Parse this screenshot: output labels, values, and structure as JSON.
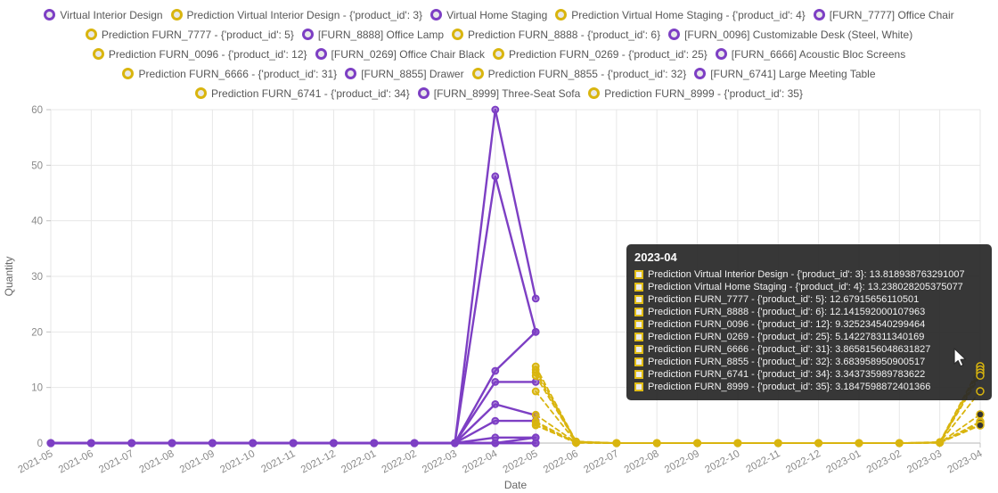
{
  "colors": {
    "actual": "#7d3fc4",
    "prediction": "#d9b50f",
    "legend_fill": "#e9e9e9",
    "grid": "#e7e7e7",
    "axis_line": "#c3c3c3",
    "tick_text": "#8a8a8a",
    "axis_title_text": "#666666",
    "tooltip_bg": "rgba(40,40,40,0.93)",
    "highlight_fill": "#333333"
  },
  "legend": {
    "rows": [
      [
        {
          "label": "Virtual Interior Design",
          "type": "actual"
        },
        {
          "label": "Prediction Virtual Interior Design - {'product_id': 3}",
          "type": "prediction"
        },
        {
          "label": "Virtual Home Staging",
          "type": "actual"
        },
        {
          "label": "Prediction Virtual Home Staging - {'product_id': 4}",
          "type": "prediction"
        },
        {
          "label": "[FURN_7777] Office Chair",
          "type": "actual"
        }
      ],
      [
        {
          "label": "Prediction FURN_7777 - {'product_id': 5}",
          "type": "prediction"
        },
        {
          "label": "[FURN_8888] Office Lamp",
          "type": "actual"
        },
        {
          "label": "Prediction FURN_8888 - {'product_id': 6}",
          "type": "prediction"
        },
        {
          "label": "[FURN_0096] Customizable Desk (Steel, White)",
          "type": "actual"
        }
      ],
      [
        {
          "label": "Prediction FURN_0096 - {'product_id': 12}",
          "type": "prediction"
        },
        {
          "label": "[FURN_0269] Office Chair Black",
          "type": "actual"
        },
        {
          "label": "Prediction FURN_0269 - {'product_id': 25}",
          "type": "prediction"
        },
        {
          "label": "[FURN_6666] Acoustic Bloc Screens",
          "type": "actual"
        }
      ],
      [
        {
          "label": "Prediction FURN_6666 - {'product_id': 31}",
          "type": "prediction"
        },
        {
          "label": "[FURN_8855] Drawer",
          "type": "actual"
        },
        {
          "label": "Prediction FURN_8855 - {'product_id': 32}",
          "type": "prediction"
        },
        {
          "label": "[FURN_6741] Large Meeting Table",
          "type": "actual"
        }
      ],
      [
        {
          "label": "Prediction FURN_6741 - {'product_id': 34}",
          "type": "prediction"
        },
        {
          "label": "[FURN_8999] Three-Seat Sofa",
          "type": "actual"
        },
        {
          "label": "Prediction FURN_8999 - {'product_id': 35}",
          "type": "prediction"
        }
      ]
    ]
  },
  "chart_data": {
    "type": "line",
    "title": "",
    "xlabel": "Date",
    "ylabel": "Quantity",
    "ylim": [
      0,
      60
    ],
    "y_ticks": [
      0,
      10,
      20,
      30,
      40,
      50,
      60
    ],
    "grid": true,
    "legend_position": "top",
    "x": [
      "2021-05",
      "2021-06",
      "2021-07",
      "2021-08",
      "2021-09",
      "2021-10",
      "2021-11",
      "2021-12",
      "2022-01",
      "2022-02",
      "2022-03",
      "2022-04",
      "2022-05",
      "2022-06",
      "2022-07",
      "2022-08",
      "2022-09",
      "2022-10",
      "2022-11",
      "2022-12",
      "2023-01",
      "2023-02",
      "2023-03",
      "2023-04"
    ],
    "series": [
      {
        "name": "Virtual Interior Design",
        "role": "actual",
        "dash": false,
        "values": [
          0,
          0,
          0,
          0,
          0,
          0,
          0,
          0,
          0,
          0,
          0,
          60,
          26,
          null,
          null,
          null,
          null,
          null,
          null,
          null,
          null,
          null,
          null,
          null
        ]
      },
      {
        "name": "Virtual Home Staging",
        "role": "actual",
        "dash": false,
        "values": [
          0,
          0,
          0,
          0,
          0,
          0,
          0,
          0,
          0,
          0,
          0,
          48,
          20,
          null,
          null,
          null,
          null,
          null,
          null,
          null,
          null,
          null,
          null,
          null
        ]
      },
      {
        "name": "[FURN_7777] Office Chair",
        "role": "actual",
        "dash": false,
        "values": [
          0,
          0,
          0,
          0,
          0,
          0,
          0,
          0,
          0,
          0,
          0,
          13,
          20,
          null,
          null,
          null,
          null,
          null,
          null,
          null,
          null,
          null,
          null,
          null
        ]
      },
      {
        "name": "[FURN_8888] Office Lamp",
        "role": "actual",
        "dash": false,
        "values": [
          0,
          0,
          0,
          0,
          0,
          0,
          0,
          0,
          0,
          0,
          0,
          11,
          11,
          null,
          null,
          null,
          null,
          null,
          null,
          null,
          null,
          null,
          null,
          null
        ]
      },
      {
        "name": "[FURN_0096] Customizable Desk (Steel, White)",
        "role": "actual",
        "dash": false,
        "values": [
          0,
          0,
          0,
          0,
          0,
          0,
          0,
          0,
          0,
          0,
          0,
          7,
          5,
          null,
          null,
          null,
          null,
          null,
          null,
          null,
          null,
          null,
          null,
          null
        ]
      },
      {
        "name": "[FURN_0269] Office Chair Black",
        "role": "actual",
        "dash": false,
        "values": [
          0,
          0,
          0,
          0,
          0,
          0,
          0,
          0,
          0,
          0,
          0,
          4,
          4,
          null,
          null,
          null,
          null,
          null,
          null,
          null,
          null,
          null,
          null,
          null
        ]
      },
      {
        "name": "[FURN_6666] Acoustic Bloc Screens",
        "role": "actual",
        "dash": false,
        "values": [
          0,
          0,
          0,
          0,
          0,
          0,
          0,
          0,
          0,
          0,
          0,
          1,
          1,
          null,
          null,
          null,
          null,
          null,
          null,
          null,
          null,
          null,
          null,
          null
        ]
      },
      {
        "name": "[FURN_8855] Drawer",
        "role": "actual",
        "dash": false,
        "values": [
          0,
          0,
          0,
          0,
          0,
          0,
          0,
          0,
          0,
          0,
          0,
          0,
          1,
          null,
          null,
          null,
          null,
          null,
          null,
          null,
          null,
          null,
          null,
          null
        ]
      },
      {
        "name": "[FURN_6741] Large Meeting Table",
        "role": "actual",
        "dash": false,
        "values": [
          0,
          0,
          0,
          0,
          0,
          0,
          0,
          0,
          0,
          0,
          0,
          0,
          0,
          null,
          null,
          null,
          null,
          null,
          null,
          null,
          null,
          null,
          null,
          null
        ]
      },
      {
        "name": "[FURN_8999] Three-Seat Sofa",
        "role": "actual",
        "dash": false,
        "values": [
          0,
          0,
          0,
          0,
          0,
          0,
          0,
          0,
          0,
          0,
          0,
          0,
          0,
          null,
          null,
          null,
          null,
          null,
          null,
          null,
          null,
          null,
          null,
          null
        ]
      },
      {
        "name": "Prediction Virtual Interior Design - {'product_id': 3}",
        "role": "prediction",
        "dash": true,
        "values": [
          null,
          null,
          null,
          null,
          null,
          null,
          null,
          null,
          null,
          null,
          null,
          null,
          13.8,
          0.3,
          0,
          0,
          0,
          0,
          0,
          0,
          0,
          0,
          0.2,
          13.818938763291007
        ]
      },
      {
        "name": "Prediction Virtual Home Staging - {'product_id': 4}",
        "role": "prediction",
        "dash": true,
        "values": [
          null,
          null,
          null,
          null,
          null,
          null,
          null,
          null,
          null,
          null,
          null,
          null,
          13.2,
          0.25,
          0,
          0,
          0,
          0,
          0,
          0,
          0,
          0,
          0.15,
          13.238028205375077
        ]
      },
      {
        "name": "Prediction FURN_7777 - {'product_id': 5}",
        "role": "prediction",
        "dash": true,
        "values": [
          null,
          null,
          null,
          null,
          null,
          null,
          null,
          null,
          null,
          null,
          null,
          null,
          12.7,
          0.2,
          0,
          0,
          0,
          0,
          0,
          0,
          0,
          0,
          0.1,
          12.67915656110501
        ]
      },
      {
        "name": "Prediction FURN_8888 - {'product_id': 6}",
        "role": "prediction",
        "dash": true,
        "values": [
          null,
          null,
          null,
          null,
          null,
          null,
          null,
          null,
          null,
          null,
          null,
          null,
          12.1,
          0.2,
          0,
          0,
          0,
          0,
          0,
          0,
          0,
          0,
          0.1,
          12.141592000107963
        ]
      },
      {
        "name": "Prediction FURN_0096 - {'product_id': 12}",
        "role": "prediction",
        "dash": true,
        "values": [
          null,
          null,
          null,
          null,
          null,
          null,
          null,
          null,
          null,
          null,
          null,
          null,
          9.3,
          0.15,
          0,
          0,
          0,
          0,
          0,
          0,
          0,
          0,
          0.1,
          9.325234540299464
        ]
      },
      {
        "name": "Prediction FURN_0269 - {'product_id': 25}",
        "role": "prediction",
        "dash": true,
        "values": [
          null,
          null,
          null,
          null,
          null,
          null,
          null,
          null,
          null,
          null,
          null,
          null,
          5.1,
          0.1,
          0,
          0,
          0,
          0,
          0,
          0,
          0,
          0,
          0.05,
          5.142278311340169
        ]
      },
      {
        "name": "Prediction FURN_6666 - {'product_id': 31}",
        "role": "prediction",
        "dash": true,
        "values": [
          null,
          null,
          null,
          null,
          null,
          null,
          null,
          null,
          null,
          null,
          null,
          null,
          3.9,
          0.05,
          0,
          0,
          0,
          0,
          0,
          0,
          0,
          0,
          0.05,
          3.8658156048631827
        ]
      },
      {
        "name": "Prediction FURN_8855 - {'product_id': 32}",
        "role": "prediction",
        "dash": true,
        "values": [
          null,
          null,
          null,
          null,
          null,
          null,
          null,
          null,
          null,
          null,
          null,
          null,
          3.7,
          0.05,
          0,
          0,
          0,
          0,
          0,
          0,
          0,
          0,
          0.05,
          3.683958950900517
        ]
      },
      {
        "name": "Prediction FURN_6741 - {'product_id': 34}",
        "role": "prediction",
        "dash": true,
        "values": [
          null,
          null,
          null,
          null,
          null,
          null,
          null,
          null,
          null,
          null,
          null,
          null,
          3.3,
          0.05,
          0,
          0,
          0,
          0,
          0,
          0,
          0,
          0,
          0.05,
          3.343735989783622
        ]
      },
      {
        "name": "Prediction FURN_8999 - {'product_id': 35}",
        "role": "prediction",
        "dash": true,
        "values": [
          null,
          null,
          null,
          null,
          null,
          null,
          null,
          null,
          null,
          null,
          null,
          null,
          3.2,
          0.05,
          0,
          0,
          0,
          0,
          0,
          0,
          0,
          0,
          0.05,
          3.1847598872401366
        ]
      }
    ]
  },
  "tooltip": {
    "title": "2023-04",
    "rows": [
      {
        "label": "Prediction Virtual Interior Design - {'product_id': 3}",
        "value": "13.818938763291007"
      },
      {
        "label": "Prediction Virtual Home Staging - {'product_id': 4}",
        "value": "13.238028205375077"
      },
      {
        "label": "Prediction FURN_7777 - {'product_id': 5}",
        "value": "12.67915656110501"
      },
      {
        "label": "Prediction FURN_8888 - {'product_id': 6}",
        "value": "12.141592000107963"
      },
      {
        "label": "Prediction FURN_0096 - {'product_id': 12}",
        "value": "9.325234540299464"
      },
      {
        "label": "Prediction FURN_0269 - {'product_id': 25}",
        "value": "5.142278311340169"
      },
      {
        "label": "Prediction FURN_6666 - {'product_id': 31}",
        "value": "3.8658156048631827"
      },
      {
        "label": "Prediction FURN_8855 - {'product_id': 32}",
        "value": "3.683958950900517"
      },
      {
        "label": "Prediction FURN_6741 - {'product_id': 34}",
        "value": "3.343735989783622"
      },
      {
        "label": "Prediction FURN_8999 - {'product_id': 35}",
        "value": "3.1847598872401366"
      }
    ]
  }
}
